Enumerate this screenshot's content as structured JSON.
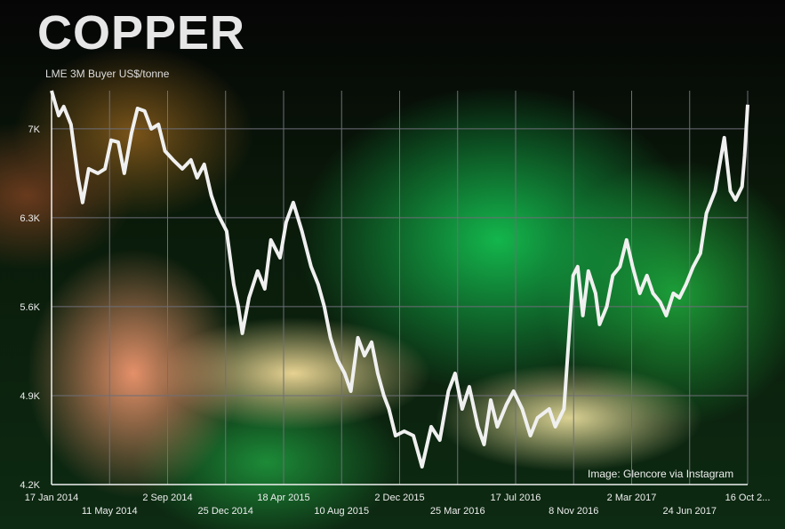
{
  "chart_data": {
    "type": "line",
    "title": "COPPER",
    "subtitle": "LME 3M Buyer US$/tonne",
    "credit": "Image: Glencore via Instagram",
    "ylim": [
      4200,
      7300
    ],
    "yticks": [
      4200,
      4900,
      5600,
      6300,
      7000
    ],
    "ytick_labels": [
      "4.2K",
      "4.9K",
      "5.6K",
      "6.3K",
      "7K"
    ],
    "xlim": [
      "2014-01-17",
      "2017-10-16"
    ],
    "xticks": [
      "2014-01-17",
      "2014-05-11",
      "2014-09-02",
      "2014-12-25",
      "2015-04-18",
      "2015-08-10",
      "2015-12-02",
      "2016-03-25",
      "2016-07-17",
      "2016-11-08",
      "2017-03-02",
      "2017-06-24",
      "2017-10-16"
    ],
    "xtick_labels": [
      "17 Jan 2014",
      "11 May 2014",
      "2 Sep 2014",
      "25 Dec 2014",
      "18 Apr 2015",
      "10 Aug 2015",
      "2 Dec 2015",
      "25 Mar 2016",
      "17 Jul 2016",
      "8 Nov 2016",
      "2 Mar 2017",
      "24 Jun 2017",
      "16 Oct 2..."
    ],
    "grid": true,
    "line_color": "#f0f0f0",
    "grid_color": "#6e6e78",
    "x": [
      "2014-01-17",
      "2014-01-31",
      "2014-02-10",
      "2014-02-24",
      "2014-03-10",
      "2014-03-19",
      "2014-03-31",
      "2014-04-18",
      "2014-05-02",
      "2014-05-14",
      "2014-05-28",
      "2014-06-09",
      "2014-06-23",
      "2014-07-05",
      "2014-07-19",
      "2014-08-01",
      "2014-08-15",
      "2014-08-28",
      "2014-09-13",
      "2014-10-01",
      "2014-10-18",
      "2014-10-30",
      "2014-11-13",
      "2014-11-27",
      "2014-12-09",
      "2014-12-27",
      "2015-01-10",
      "2015-01-19",
      "2015-01-27",
      "2015-02-09",
      "2015-02-26",
      "2015-03-12",
      "2015-03-24",
      "2015-04-11",
      "2015-04-23",
      "2015-05-07",
      "2015-05-24",
      "2015-06-11",
      "2015-06-25",
      "2015-07-07",
      "2015-07-19",
      "2015-08-02",
      "2015-08-16",
      "2015-08-28",
      "2015-09-11",
      "2015-09-24",
      "2015-10-08",
      "2015-10-20",
      "2015-11-01",
      "2015-11-11",
      "2015-11-24",
      "2015-12-11",
      "2015-12-29",
      "2016-01-15",
      "2016-02-02",
      "2016-02-19",
      "2016-03-07",
      "2016-03-20",
      "2016-04-03",
      "2016-04-17",
      "2016-05-04",
      "2016-05-16",
      "2016-05-29",
      "2016-06-11",
      "2016-06-29",
      "2016-07-13",
      "2016-07-30",
      "2016-08-15",
      "2016-08-29",
      "2016-09-21",
      "2016-10-03",
      "2016-10-20",
      "2016-11-07",
      "2016-11-16",
      "2016-11-26",
      "2016-12-07",
      "2016-12-21",
      "2016-12-29",
      "2017-01-12",
      "2017-01-24",
      "2017-02-07",
      "2017-02-20",
      "2017-03-04",
      "2017-03-18",
      "2017-04-01",
      "2017-04-13",
      "2017-04-27",
      "2017-05-09",
      "2017-05-23",
      "2017-06-04",
      "2017-06-17",
      "2017-07-01",
      "2017-07-15",
      "2017-07-27",
      "2017-08-13",
      "2017-08-31",
      "2017-09-12",
      "2017-09-22",
      "2017-10-05",
      "2017-10-10",
      "2017-10-16"
    ],
    "values": [
      7300,
      7105,
      7175,
      7035,
      6615,
      6420,
      6685,
      6650,
      6685,
      6910,
      6895,
      6650,
      6965,
      7160,
      7140,
      7000,
      7035,
      6825,
      6755,
      6685,
      6755,
      6615,
      6720,
      6475,
      6335,
      6195,
      5775,
      5600,
      5390,
      5670,
      5880,
      5740,
      6125,
      5985,
      6265,
      6420,
      6195,
      5915,
      5775,
      5600,
      5355,
      5180,
      5075,
      4935,
      5355,
      5215,
      5320,
      5075,
      4900,
      4795,
      4585,
      4620,
      4585,
      4340,
      4655,
      4550,
      4935,
      5075,
      4795,
      4970,
      4655,
      4515,
      4865,
      4655,
      4830,
      4935,
      4795,
      4585,
      4725,
      4795,
      4655,
      4795,
      5845,
      5915,
      5530,
      5880,
      5705,
      5460,
      5600,
      5845,
      5915,
      6125,
      5915,
      5705,
      5845,
      5705,
      5635,
      5530,
      5705,
      5670,
      5775,
      5915,
      6020,
      6335,
      6510,
      6930,
      6510,
      6440,
      6545,
      6790,
      7190
    ]
  }
}
